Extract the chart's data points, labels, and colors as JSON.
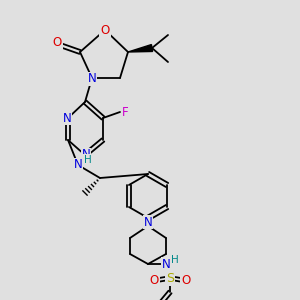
{
  "background_color": "#e0e0e0",
  "atom_colors": {
    "C": "#000000",
    "N": "#0000dd",
    "O": "#dd0000",
    "F": "#cc00cc",
    "S": "#aaaa00",
    "H": "#008888"
  },
  "figsize": [
    3.0,
    3.0
  ],
  "dpi": 100
}
